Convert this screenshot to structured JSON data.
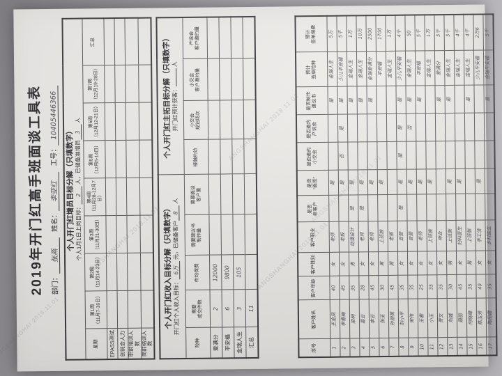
{
  "document": {
    "title": "2019年开门红高手班面谈工具表",
    "info": {
      "dept_label": "部门：",
      "dept_value": "张燕",
      "name_label": "姓名：",
      "name_value": "李亚红",
      "id_label": "工号：",
      "id_value": "10405446366"
    }
  },
  "recruit_section": {
    "title": "个人开门红增员目标分解（只填数字）",
    "sub_pre": "个人1月1日上岗目标：",
    "sub_v1": "2",
    "sub_mid": "人，已储备准增员",
    "sub_v2": "3",
    "sub_post": "人",
    "corner": "星期",
    "week_headers": [
      "第1周\n（11月7-16日）",
      "第2周\n（11月14-23日）",
      "第3周\n（11月21-30日）",
      "第4周\n（11月28-12月7日）",
      "第5周\n（12月5-14日）",
      "第6周\n（12月12-21日）",
      "第7周\n（12月19-28日）",
      "汇总"
    ],
    "row_labels": [
      "EPASS测试",
      "创说会人力",
      "职前培训人数",
      "岗前结训人数"
    ]
  },
  "income_section": {
    "title": "个人开门红收入目标分解（只填数字）",
    "sub_pre": "开门红个人收入目标：",
    "sub_v1": "6万",
    "sub_mid": "元，已储备客户",
    "sub_v2": "8",
    "sub_post": "人"
  },
  "prospect_section": {
    "title": "个人开门红主拓目标分解（只填数字）",
    "sub_pre": "开门红预计获客：",
    "sub_v1": "",
    "sub_post": "人"
  },
  "bc_table": {
    "headers": [
      "险种",
      "需要\n成交件数",
      "件均保费",
      "需要建议书\n制作量",
      "需要面谈\n客户量",
      "接触约访",
      "小交会\n规划场次",
      "小交会\n客户邀约量",
      "产说会\n客户邀约量"
    ],
    "rows": [
      {
        "label": "爱满分",
        "cells": [
          "2",
          "12000",
          "",
          "",
          "",
          "",
          "",
          ""
        ]
      },
      {
        "label": "平安福",
        "cells": [
          "6",
          "9800",
          "",
          "",
          "",
          "",
          "",
          ""
        ]
      },
      {
        "label": "金瑞人生",
        "cells": [
          "3",
          "105",
          "",
          "",
          "",
          "",
          "",
          ""
        ]
      },
      {
        "label": "汇总",
        "cells": [
          "11",
          "",
          "",
          "",
          "",
          "",
          "",
          ""
        ]
      }
    ]
  },
  "client_table": {
    "headers": [
      "序号",
      "客户姓名",
      "客户年龄",
      "客户性别",
      "客户职业",
      "是否\n老客户",
      "是否\n“面签”",
      "是否邀约\n小交会",
      "是否邀约\n产说会",
      "是否制作\n建议书",
      "预计\n签单险种",
      "预计\n签单保费"
    ],
    "rows": [
      [
        "1",
        "王金凤",
        "40",
        "女",
        "老师",
        "",
        "是",
        "",
        "",
        "是",
        "金瑞人生",
        "5万"
      ],
      [
        "2",
        "李春梅",
        "45",
        "女",
        "老板",
        "",
        "是",
        "否",
        "是",
        "是",
        "少儿平安福",
        "5千"
      ],
      [
        "3",
        "梁明",
        "35",
        "男",
        "动漫设计",
        "是",
        "是",
        "",
        "",
        "是",
        "金瑞人生",
        "1万"
      ],
      [
        "4",
        "葛云",
        "28",
        "女",
        "老师",
        "是",
        "是",
        "",
        "",
        "是",
        "金瑞人生",
        "10万"
      ],
      [
        "5",
        "李云",
        "45",
        "女",
        "老师",
        "",
        "是",
        "",
        "",
        "是",
        "金瑞爱满分",
        "2500"
      ],
      [
        "6",
        "张玉",
        "30",
        "男",
        "上班族",
        "",
        "是",
        "",
        "",
        "",
        "平安福",
        "1700"
      ],
      [
        "7",
        "孙丽英",
        "45",
        "男",
        "老板",
        "",
        "",
        "",
        "",
        "",
        "金瑞人生",
        "1万"
      ],
      [
        "8",
        "刘小平",
        "35",
        "女",
        "自营",
        "是",
        "是",
        "是",
        "是",
        "是",
        "少儿平安福",
        "4千"
      ],
      [
        "9",
        "宋伟",
        "35",
        "女",
        "自营",
        "",
        "是",
        "",
        "否",
        "是",
        "金瑞人生",
        "50"
      ],
      [
        "10",
        "王春",
        "25",
        "女",
        "老师",
        "",
        "是",
        "",
        "",
        "是",
        "平安福",
        "5千"
      ],
      [
        "11",
        "小王",
        "35",
        "女",
        "上班族",
        "",
        "是",
        "",
        "",
        "",
        "金瑞人生",
        "1万"
      ],
      [
        "12",
        "贾文",
        "35",
        "女",
        "待业",
        "",
        "",
        "",
        "",
        "是",
        "爱满分",
        "5千"
      ],
      [
        "13",
        "刘威",
        "30",
        "男",
        "上班族",
        "",
        "是",
        "",
        "",
        "是",
        "金瑞人生",
        "5千"
      ],
      [
        "14",
        "聂丽",
        "45",
        "女",
        "妇科医生",
        "",
        "是",
        "",
        "",
        "",
        "金瑞人生",
        "4千"
      ],
      [
        "15",
        "何晓峰",
        "35",
        "男",
        "上班族",
        "",
        "",
        "",
        "",
        "是",
        "金瑞人生",
        "4千"
      ],
      [
        "16",
        "陈玉芳",
        "40",
        "女",
        "手工活",
        "",
        "是",
        "",
        "",
        "",
        "少儿平安福",
        "2万6"
      ],
      [
        "17",
        "陶丽霞",
        "35",
        "女",
        "乡村医生",
        "",
        "",
        "",
        "",
        "是",
        "金瑞平安福",
        "5千"
      ]
    ]
  },
  "watermark": "ANGSHANGHAI 2018.11.01"
}
